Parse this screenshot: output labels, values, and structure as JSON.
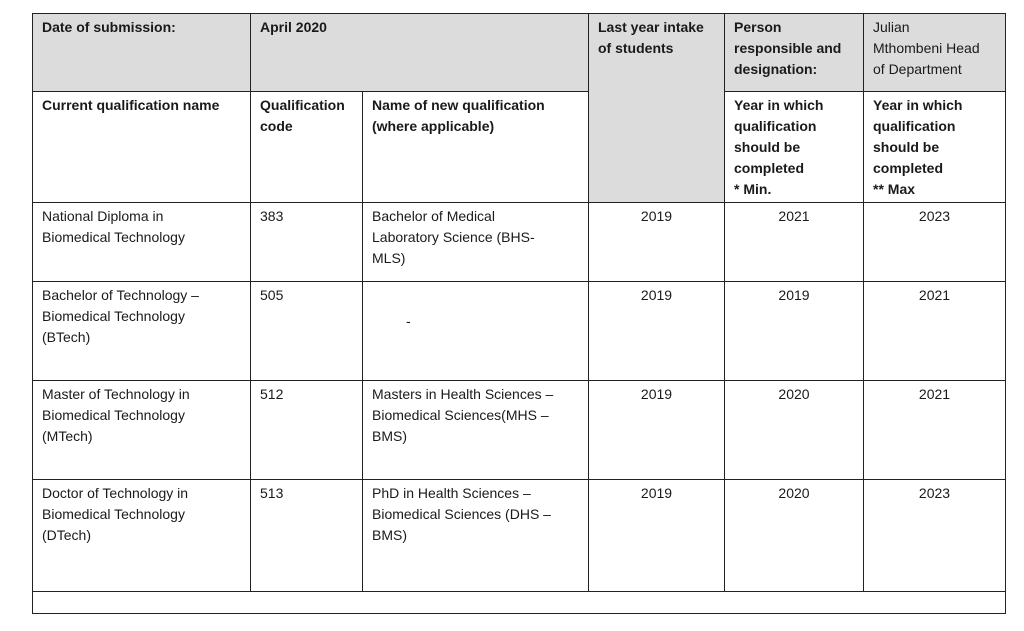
{
  "header": {
    "date_label": "Date of submission:",
    "date_value": "April 2020",
    "intake_label": "Last year intake\nof students",
    "person_label": "Person\nresponsible and\ndesignation:",
    "person_value": "Julian\nMthombeni Head\nof Department"
  },
  "columns": {
    "current": "Current qualification name",
    "code": "Qualification\ncode",
    "new_name": "Name of new qualification\n(where applicable)",
    "year_min": "Year in which\nqualification\nshould be\ncompleted\n* Min.",
    "year_max": " Year in which\nqualification\nshould be\ncompleted\n** Max"
  },
  "rows": [
    {
      "current": "National Diploma in\nBiomedical Technology",
      "code": "383",
      "new_name": "Bachelor of Medical\nLaboratory Science (BHS-\nMLS)",
      "intake": "2019",
      "min": "2021",
      "max": "2023"
    },
    {
      "current": "Bachelor of Technology –\nBiomedical Technology\n(BTech)",
      "code": "505",
      "new_name": "-",
      "intake": "2019",
      "min": "2019",
      "max": "2021"
    },
    {
      "current": "Master of Technology in\nBiomedical Technology\n(MTech)",
      "code": "512",
      "new_name": "Masters in Health Sciences –\nBiomedical Sciences(MHS –\nBMS)",
      "intake": "2019",
      "min": "2020",
      "max": "2021"
    },
    {
      "current": "Doctor of Technology in\nBiomedical Technology\n(DTech)",
      "code": "513",
      "new_name": "PhD in Health Sciences –\nBiomedical Sciences (DHS –\nBMS)",
      "intake": "2019",
      "min": "2020",
      "max": "2023"
    }
  ]
}
